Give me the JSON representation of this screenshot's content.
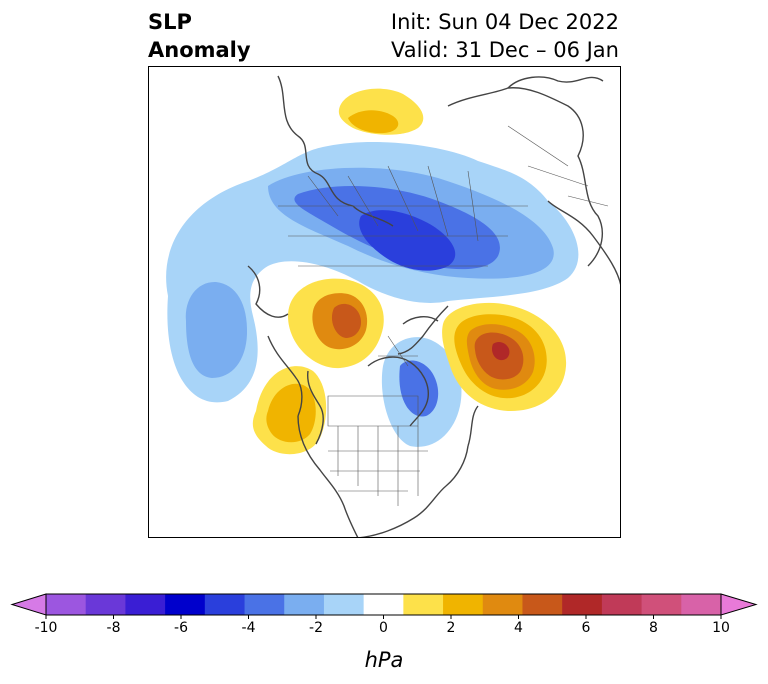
{
  "title": {
    "left_lines": [
      "SLP",
      "Anomaly"
    ],
    "right_lines": [
      "Init: Sun 04 Dec 2022",
      "Valid: 31 Dec – 06 Jan"
    ]
  },
  "colorbar": {
    "unit": "hPa",
    "tick_labels": [
      "-10",
      "-8",
      "-6",
      "-4",
      "-2",
      "0",
      "2",
      "4",
      "6",
      "8",
      "10"
    ],
    "colors": [
      "#d67ae6",
      "#9c56e0",
      "#6a38d8",
      "#3a1ed4",
      "#0000cc",
      "#2a3fdc",
      "#4a72e6",
      "#7aaef0",
      "#a8d4f8",
      "#ffffff",
      "#fde14a",
      "#f0b400",
      "#e08a10",
      "#c8581a",
      "#b02828",
      "#c03a58",
      "#d0507a",
      "#d862a8",
      "#e87ad8"
    ]
  },
  "map": {
    "palette": {
      "land_line": "#444444",
      "blue_1": "#a8d4f8",
      "blue_2": "#7aaef0",
      "blue_3": "#4a72e6",
      "blue_4": "#2a3fdc",
      "yellow_1": "#fde14a",
      "yellow_2": "#f0b400",
      "orange_1": "#e08a10",
      "orange_2": "#c8581a",
      "red_1": "#b02828"
    }
  }
}
